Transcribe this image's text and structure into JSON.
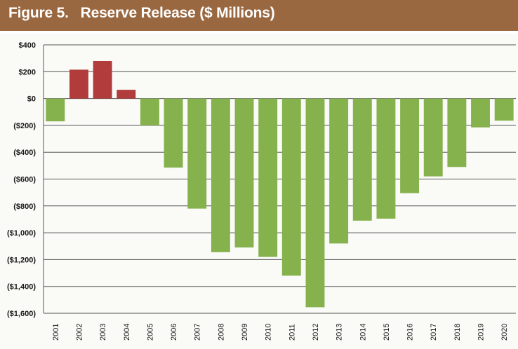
{
  "header": {
    "figure_label": "Figure 5.",
    "title": "Reserve Release ($ Millions)"
  },
  "colors": {
    "header_bg": "#9a6840",
    "positive": "#b23c3b",
    "negative": "#86b24e",
    "gridline": "#555555"
  },
  "chart_data": {
    "type": "bar",
    "title": "Reserve Release ($ Millions)",
    "xlabel": "",
    "ylabel": "",
    "categories": [
      "2001",
      "2002",
      "2003",
      "2004",
      "2005",
      "2006",
      "2007",
      "2008",
      "2009",
      "2010",
      "2011",
      "2012",
      "2013",
      "2014",
      "2015",
      "2016",
      "2017",
      "2018",
      "2019",
      "2020"
    ],
    "values": [
      -170,
      215,
      280,
      65,
      -200,
      -515,
      -820,
      -1145,
      -1110,
      -1180,
      -1320,
      -1555,
      -1080,
      -910,
      -895,
      -705,
      -580,
      -510,
      -215,
      -165
    ],
    "ylim": [
      -1600,
      400
    ],
    "yticks": [
      400,
      200,
      0,
      -200,
      -400,
      -600,
      -800,
      -1000,
      -1200,
      -1400,
      -1600
    ],
    "ytick_labels": [
      "$400",
      "$200",
      "$0",
      "($200)",
      "($400)",
      "($600)",
      "($800)",
      "($1,000)",
      "($1,200)",
      "($1,400)",
      "($1,600)"
    ],
    "grid": true,
    "legend": "none"
  }
}
